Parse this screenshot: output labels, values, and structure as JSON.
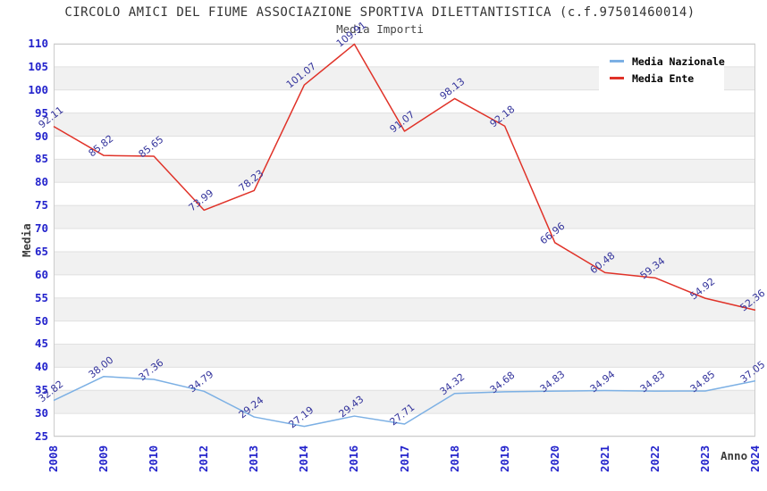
{
  "chart_data": {
    "type": "line",
    "title": "CIRCOLO AMICI DEL FIUME ASSOCIAZIONE SPORTIVA DILETTANTISTICA (c.f.97501460014)",
    "subtitle": "Media Importi",
    "xlabel": "Anno",
    "ylabel": "Media",
    "ylim": [
      25,
      110
    ],
    "ytick_step": 5,
    "grid": true,
    "background_bands": true,
    "legend_position": "top-right",
    "categories": [
      "2008",
      "2009",
      "2010",
      "2012",
      "2013",
      "2014",
      "2016",
      "2017",
      "2018",
      "2019",
      "2020",
      "2021",
      "2022",
      "2023",
      "2024"
    ],
    "series": [
      {
        "name": "Media Nazionale",
        "color": "#7cb0e4",
        "values": [
          32.82,
          38.0,
          37.36,
          34.79,
          29.24,
          27.19,
          29.43,
          27.71,
          34.32,
          34.68,
          34.83,
          34.94,
          34.83,
          34.85,
          37.05
        ]
      },
      {
        "name": "Media Ente",
        "color": "#e03228",
        "values": [
          92.11,
          85.82,
          85.65,
          73.99,
          78.23,
          101.07,
          109.91,
          91.07,
          98.13,
          92.18,
          66.96,
          60.48,
          59.34,
          54.92,
          52.36
        ]
      }
    ],
    "colors": {
      "tick_label": "#2323cc",
      "data_label": "#34349c",
      "band": "#f1f1f1",
      "grid": "#e0e0e0",
      "border": "#cccccc",
      "title": "#333333"
    }
  }
}
